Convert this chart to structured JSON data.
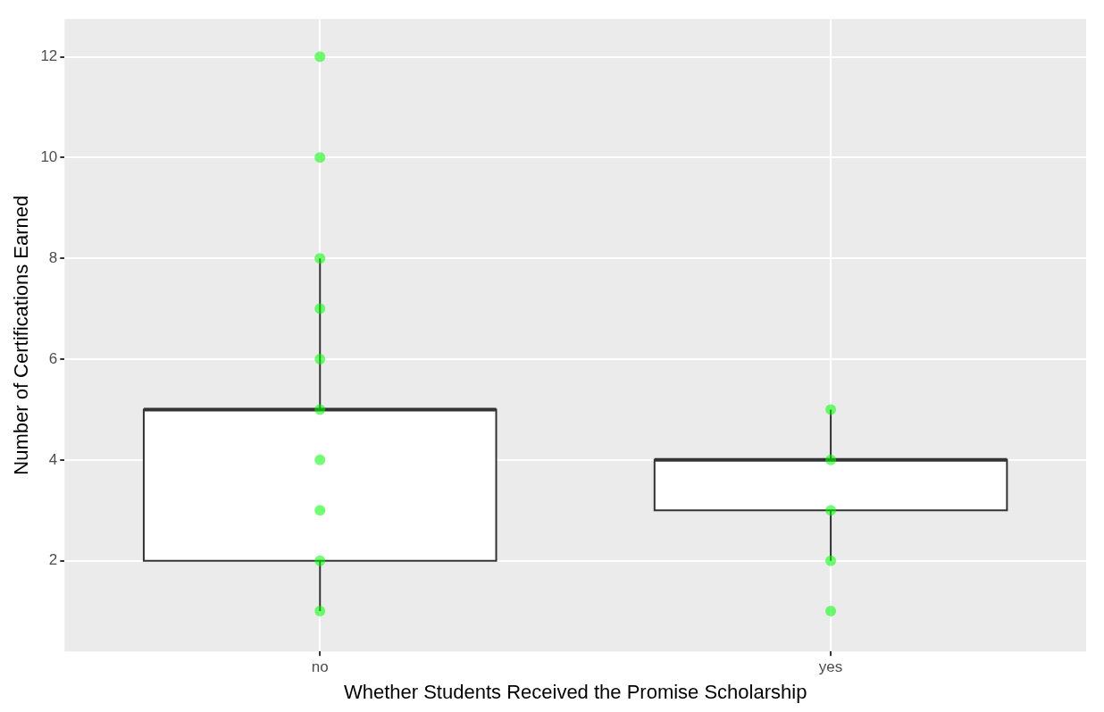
{
  "chart_data": {
    "type": "box",
    "xlabel": "Whether Students Received the Promise Scholarship",
    "ylabel": "Number of Certifications Earned",
    "categories": [
      "no",
      "yes"
    ],
    "boxes": [
      {
        "low": 1,
        "q1": 2,
        "median": 5,
        "q3": 5,
        "high": 8
      },
      {
        "low": 2,
        "q1": 3,
        "median": 4,
        "q3": 4,
        "high": 5
      }
    ],
    "series": [
      {
        "type": "scatter",
        "color": "#00ff00",
        "x": [
          "no",
          "no",
          "no",
          "no",
          "no",
          "no",
          "no",
          "no",
          "no",
          "no",
          "yes",
          "yes",
          "yes",
          "yes",
          "yes"
        ],
        "values": [
          1,
          2,
          3,
          4,
          5,
          6,
          7,
          8,
          10,
          12,
          1,
          2,
          3,
          4,
          5
        ]
      }
    ],
    "ylim": [
      0.2,
      12.75
    ],
    "yticks": [
      2,
      4,
      6,
      8,
      10,
      12
    ],
    "grid": true,
    "legend": false,
    "marker": "circle"
  }
}
